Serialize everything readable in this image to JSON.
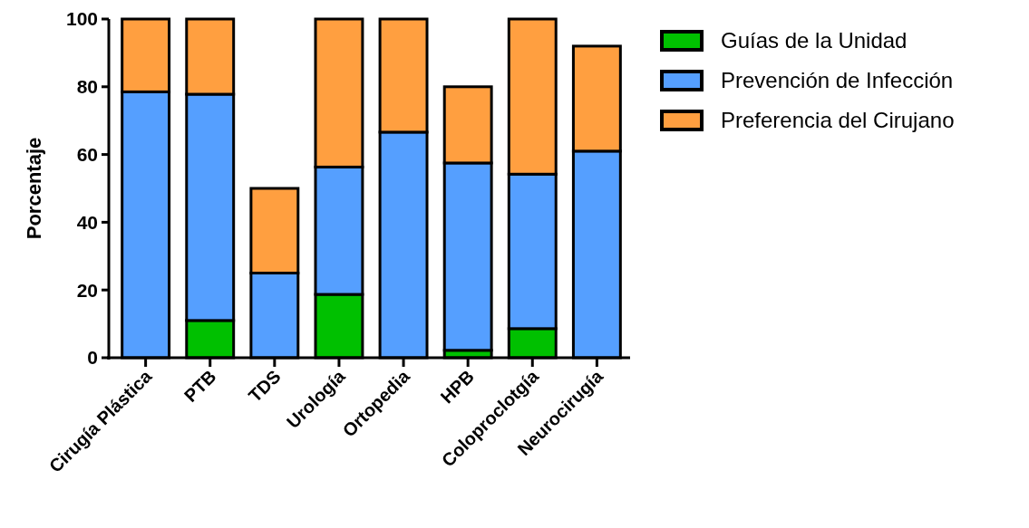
{
  "chart_data": {
    "type": "bar",
    "stacked": true,
    "ylabel": "Porcentaje",
    "categories": [
      "Cirugía Plástica",
      "PTB",
      "TDS",
      "Urología",
      "Ortopedia",
      "HPB",
      "Coloproclotgía",
      "Neurocirugía"
    ],
    "series": [
      {
        "name": "Guías de la Unidad",
        "color": "#00c000",
        "values": [
          0,
          11,
          0,
          18.7,
          0,
          2.2,
          8.6,
          0
        ]
      },
      {
        "name": "Prevención de Infección",
        "color": "#559fff",
        "values": [
          78.5,
          66.8,
          25,
          37.6,
          66.6,
          55.3,
          45.6,
          61
        ]
      },
      {
        "name": "Preferencia del Cirujano",
        "color": "#ff9f40",
        "values": [
          21.5,
          22.2,
          25,
          43.7,
          33.4,
          22.5,
          45.8,
          31
        ]
      }
    ],
    "ylim": [
      0,
      100
    ],
    "yticks": [
      0,
      20,
      40,
      60,
      80,
      100
    ],
    "legend": "top right"
  }
}
